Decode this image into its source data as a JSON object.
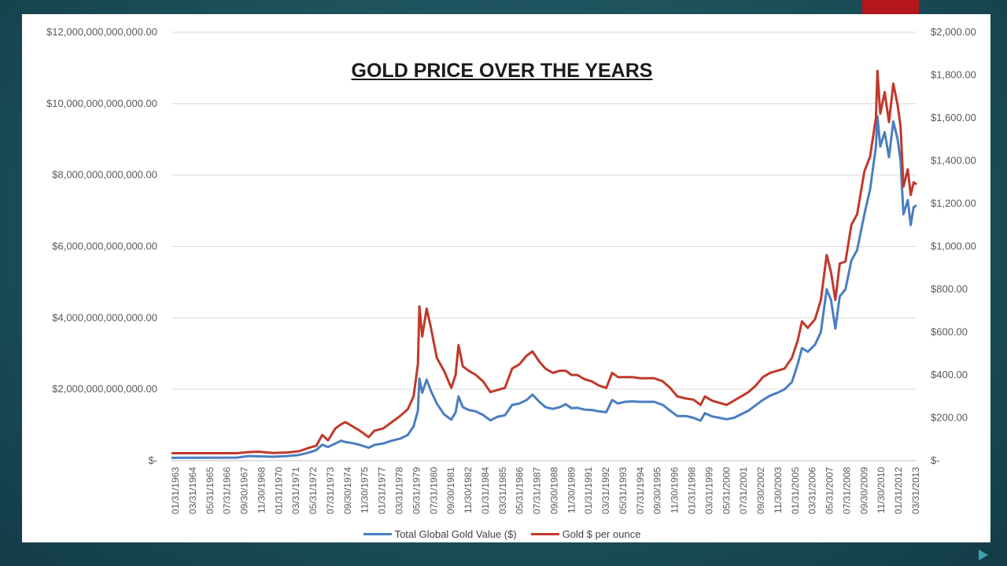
{
  "chart_data": {
    "type": "line",
    "title": "GOLD PRICE OVER THE YEARS",
    "left_axis": {
      "ticks": [
        0,
        2000000000000,
        4000000000000,
        6000000000000,
        8000000000000,
        10000000000000,
        12000000000000
      ],
      "tick_labels": [
        "$-",
        "$2,000,000,000,000.00",
        "$4,000,000,000,000.00",
        "$6,000,000,000,000.00",
        "$8,000,000,000,000.00",
        "$10,000,000,000,000.00",
        "$12,000,000,000,000.00"
      ],
      "ylim": [
        0,
        12000000000000
      ]
    },
    "right_axis": {
      "ticks": [
        0,
        200,
        400,
        600,
        800,
        1000,
        1200,
        1400,
        1600,
        1800,
        2000
      ],
      "tick_labels": [
        "$-",
        "$200.00",
        "$400.00",
        "$600.00",
        "$800.00",
        "$1,000.00",
        "$1,200.00",
        "$1,400.00",
        "$1,600.00",
        "$1,800.00",
        "$2,000.00"
      ],
      "ylim": [
        0,
        2000
      ]
    },
    "x_tick_labels": [
      "01/31/1963",
      "03/31/1964",
      "05/31/1965",
      "07/31/1966",
      "09/30/1967",
      "11/30/1968",
      "01/31/1970",
      "03/31/1971",
      "05/31/1972",
      "07/31/1973",
      "09/30/1974",
      "11/30/1975",
      "01/31/1977",
      "03/31/1978",
      "05/31/1979",
      "07/31/1980",
      "09/30/1981",
      "11/30/1982",
      "01/31/1984",
      "03/31/1985",
      "05/31/1986",
      "07/31/1987",
      "09/30/1988",
      "11/30/1989",
      "01/31/1991",
      "03/31/1992",
      "05/31/1993",
      "07/31/1994",
      "09/30/1995",
      "11/30/1996",
      "01/31/1998",
      "03/31/1999",
      "05/31/2000",
      "07/31/2001",
      "09/30/2002",
      "11/30/2003",
      "01/31/2005",
      "03/31/2006",
      "05/31/2007",
      "07/31/2008",
      "09/30/2009",
      "11/30/2010",
      "01/31/2012",
      "03/31/2013"
    ],
    "xlim": [
      1963.0,
      2014.4
    ],
    "series": [
      {
        "name": "Total Global Gold Value ($)",
        "axis": "left",
        "color": "#4a7ebf",
        "points": [
          [
            1963.0,
            80000000000
          ],
          [
            1967.5,
            85000000000
          ],
          [
            1968.3,
            130000000000
          ],
          [
            1969.0,
            120000000000
          ],
          [
            1970.0,
            110000000000
          ],
          [
            1971.0,
            130000000000
          ],
          [
            1971.8,
            160000000000
          ],
          [
            1972.5,
            230000000000
          ],
          [
            1973.0,
            300000000000
          ],
          [
            1973.4,
            450000000000
          ],
          [
            1973.8,
            380000000000
          ],
          [
            1974.3,
            480000000000
          ],
          [
            1974.7,
            560000000000
          ],
          [
            1975.0,
            520000000000
          ],
          [
            1975.5,
            490000000000
          ],
          [
            1976.0,
            440000000000
          ],
          [
            1976.6,
            360000000000
          ],
          [
            1977.0,
            440000000000
          ],
          [
            1977.6,
            480000000000
          ],
          [
            1978.2,
            560000000000
          ],
          [
            1978.8,
            620000000000
          ],
          [
            1979.3,
            720000000000
          ],
          [
            1979.7,
            960000000000
          ],
          [
            1980.0,
            1400000000000
          ],
          [
            1980.1,
            2300000000000
          ],
          [
            1980.3,
            1900000000000
          ],
          [
            1980.6,
            2270000000000
          ],
          [
            1980.9,
            1950000000000
          ],
          [
            1981.3,
            1600000000000
          ],
          [
            1981.8,
            1300000000000
          ],
          [
            1982.3,
            1150000000000
          ],
          [
            1982.6,
            1350000000000
          ],
          [
            1982.8,
            1800000000000
          ],
          [
            1983.1,
            1500000000000
          ],
          [
            1983.5,
            1420000000000
          ],
          [
            1984.0,
            1380000000000
          ],
          [
            1984.5,
            1280000000000
          ],
          [
            1985.0,
            1130000000000
          ],
          [
            1985.5,
            1230000000000
          ],
          [
            1986.0,
            1270000000000
          ],
          [
            1986.5,
            1560000000000
          ],
          [
            1987.0,
            1600000000000
          ],
          [
            1987.5,
            1700000000000
          ],
          [
            1987.9,
            1850000000000
          ],
          [
            1988.4,
            1640000000000
          ],
          [
            1988.8,
            1500000000000
          ],
          [
            1989.3,
            1450000000000
          ],
          [
            1989.8,
            1500000000000
          ],
          [
            1990.2,
            1580000000000
          ],
          [
            1990.6,
            1470000000000
          ],
          [
            1991.0,
            1480000000000
          ],
          [
            1991.5,
            1430000000000
          ],
          [
            1992.0,
            1420000000000
          ],
          [
            1992.5,
            1380000000000
          ],
          [
            1993.0,
            1360000000000
          ],
          [
            1993.4,
            1700000000000
          ],
          [
            1993.8,
            1600000000000
          ],
          [
            1994.3,
            1650000000000
          ],
          [
            1994.8,
            1660000000000
          ],
          [
            1995.3,
            1650000000000
          ],
          [
            1995.8,
            1650000000000
          ],
          [
            1996.3,
            1650000000000
          ],
          [
            1996.9,
            1560000000000
          ],
          [
            1997.4,
            1400000000000
          ],
          [
            1997.9,
            1250000000000
          ],
          [
            1998.5,
            1250000000000
          ],
          [
            1999.0,
            1200000000000
          ],
          [
            1999.5,
            1120000000000
          ],
          [
            1999.8,
            1330000000000
          ],
          [
            2000.3,
            1240000000000
          ],
          [
            2000.8,
            1200000000000
          ],
          [
            2001.3,
            1160000000000
          ],
          [
            2001.8,
            1200000000000
          ],
          [
            2002.3,
            1300000000000
          ],
          [
            2002.8,
            1400000000000
          ],
          [
            2003.3,
            1550000000000
          ],
          [
            2003.8,
            1700000000000
          ],
          [
            2004.3,
            1820000000000
          ],
          [
            2004.8,
            1900000000000
          ],
          [
            2005.3,
            2000000000000
          ],
          [
            2005.8,
            2200000000000
          ],
          [
            2006.2,
            2700000000000
          ],
          [
            2006.5,
            3150000000000
          ],
          [
            2006.9,
            3050000000000
          ],
          [
            2007.4,
            3250000000000
          ],
          [
            2007.8,
            3600000000000
          ],
          [
            2008.2,
            4800000000000
          ],
          [
            2008.5,
            4500000000000
          ],
          [
            2008.8,
            3700000000000
          ],
          [
            2009.1,
            4600000000000
          ],
          [
            2009.5,
            4800000000000
          ],
          [
            2009.9,
            5600000000000
          ],
          [
            2010.3,
            5900000000000
          ],
          [
            2010.8,
            6900000000000
          ],
          [
            2011.2,
            7600000000000
          ],
          [
            2011.6,
            8800000000000
          ],
          [
            2011.7,
            9650000000000
          ],
          [
            2011.9,
            8800000000000
          ],
          [
            2012.2,
            9200000000000
          ],
          [
            2012.5,
            8500000000000
          ],
          [
            2012.8,
            9500000000000
          ],
          [
            2013.1,
            9000000000000
          ],
          [
            2013.3,
            8400000000000
          ],
          [
            2013.5,
            6900000000000
          ],
          [
            2013.8,
            7300000000000
          ],
          [
            2014.0,
            6600000000000
          ],
          [
            2014.2,
            7100000000000
          ],
          [
            2014.4,
            7150000000000
          ]
        ]
      },
      {
        "name": "Gold $ per ounce",
        "axis": "right",
        "color": "#c0392b",
        "points": [
          [
            1963.0,
            35
          ],
          [
            1967.5,
            35
          ],
          [
            1968.3,
            40
          ],
          [
            1969.0,
            42
          ],
          [
            1970.0,
            36
          ],
          [
            1971.0,
            38
          ],
          [
            1971.8,
            44
          ],
          [
            1972.5,
            60
          ],
          [
            1973.0,
            70
          ],
          [
            1973.4,
            120
          ],
          [
            1973.8,
            95
          ],
          [
            1974.3,
            150
          ],
          [
            1974.7,
            170
          ],
          [
            1975.0,
            180
          ],
          [
            1975.5,
            160
          ],
          [
            1976.0,
            140
          ],
          [
            1976.6,
            110
          ],
          [
            1977.0,
            140
          ],
          [
            1977.6,
            150
          ],
          [
            1978.2,
            180
          ],
          [
            1978.8,
            210
          ],
          [
            1979.3,
            240
          ],
          [
            1979.7,
            300
          ],
          [
            1980.0,
            450
          ],
          [
            1980.1,
            720
          ],
          [
            1980.3,
            580
          ],
          [
            1980.6,
            710
          ],
          [
            1980.9,
            620
          ],
          [
            1981.3,
            480
          ],
          [
            1981.8,
            420
          ],
          [
            1982.3,
            340
          ],
          [
            1982.6,
            400
          ],
          [
            1982.8,
            540
          ],
          [
            1983.1,
            440
          ],
          [
            1983.5,
            420
          ],
          [
            1984.0,
            400
          ],
          [
            1984.5,
            370
          ],
          [
            1985.0,
            320
          ],
          [
            1985.5,
            330
          ],
          [
            1986.0,
            340
          ],
          [
            1986.5,
            430
          ],
          [
            1987.0,
            450
          ],
          [
            1987.5,
            490
          ],
          [
            1987.9,
            510
          ],
          [
            1988.4,
            460
          ],
          [
            1988.8,
            430
          ],
          [
            1989.3,
            410
          ],
          [
            1989.8,
            420
          ],
          [
            1990.2,
            420
          ],
          [
            1990.6,
            400
          ],
          [
            1991.0,
            400
          ],
          [
            1991.5,
            380
          ],
          [
            1992.0,
            370
          ],
          [
            1992.5,
            350
          ],
          [
            1993.0,
            340
          ],
          [
            1993.4,
            410
          ],
          [
            1993.8,
            390
          ],
          [
            1994.3,
            390
          ],
          [
            1994.8,
            390
          ],
          [
            1995.3,
            385
          ],
          [
            1995.8,
            385
          ],
          [
            1996.3,
            385
          ],
          [
            1996.9,
            370
          ],
          [
            1997.4,
            340
          ],
          [
            1997.9,
            300
          ],
          [
            1998.5,
            290
          ],
          [
            1999.0,
            285
          ],
          [
            1999.5,
            260
          ],
          [
            1999.8,
            300
          ],
          [
            2000.3,
            280
          ],
          [
            2000.8,
            270
          ],
          [
            2001.3,
            260
          ],
          [
            2001.8,
            280
          ],
          [
            2002.3,
            300
          ],
          [
            2002.8,
            320
          ],
          [
            2003.3,
            350
          ],
          [
            2003.8,
            390
          ],
          [
            2004.3,
            410
          ],
          [
            2004.8,
            420
          ],
          [
            2005.3,
            430
          ],
          [
            2005.8,
            480
          ],
          [
            2006.2,
            560
          ],
          [
            2006.5,
            650
          ],
          [
            2006.9,
            620
          ],
          [
            2007.4,
            660
          ],
          [
            2007.8,
            750
          ],
          [
            2008.2,
            960
          ],
          [
            2008.5,
            880
          ],
          [
            2008.8,
            750
          ],
          [
            2009.1,
            920
          ],
          [
            2009.5,
            930
          ],
          [
            2009.9,
            1100
          ],
          [
            2010.3,
            1150
          ],
          [
            2010.8,
            1350
          ],
          [
            2011.2,
            1420
          ],
          [
            2011.6,
            1600
          ],
          [
            2011.7,
            1820
          ],
          [
            2011.9,
            1620
          ],
          [
            2012.2,
            1720
          ],
          [
            2012.5,
            1580
          ],
          [
            2012.8,
            1760
          ],
          [
            2013.1,
            1660
          ],
          [
            2013.3,
            1560
          ],
          [
            2013.5,
            1280
          ],
          [
            2013.8,
            1360
          ],
          [
            2014.0,
            1240
          ],
          [
            2014.2,
            1300
          ],
          [
            2014.4,
            1290
          ]
        ]
      }
    ],
    "legend": {
      "position": "bottom"
    },
    "grid": true
  },
  "slide": {
    "accent_color": "#b3161d",
    "arrow_color": "#3aa0b0"
  }
}
